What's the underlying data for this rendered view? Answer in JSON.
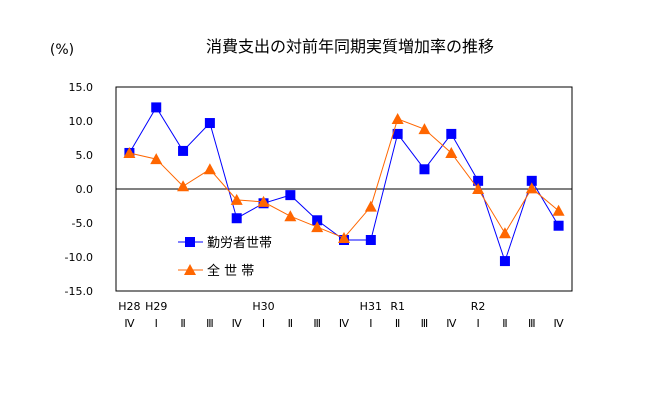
{
  "chart_data": {
    "type": "line",
    "title": "消費支出の対前年同期実質増加率の推移",
    "ylabel": "(%)",
    "ylim": [
      -15,
      15
    ],
    "yticks": [
      "15.0",
      "10.0",
      "5.0",
      "0.0",
      "-5.0",
      "-10.0",
      "-15.0"
    ],
    "ytick_values": [
      15,
      10,
      5,
      0,
      -5,
      -10,
      -15
    ],
    "grid": false,
    "legend_placement": "bottom-left",
    "year_labels": [
      "H28",
      "H29",
      "",
      "",
      "",
      "H30",
      "",
      "",
      "",
      "H31",
      "R1",
      "",
      "",
      "R2",
      "",
      "",
      ""
    ],
    "categories": [
      "Ⅳ",
      "Ⅰ",
      "Ⅱ",
      "Ⅲ",
      "Ⅳ",
      "Ⅰ",
      "Ⅱ",
      "Ⅲ",
      "Ⅳ",
      "Ⅰ",
      "Ⅱ",
      "Ⅲ",
      "Ⅳ",
      "Ⅰ",
      "Ⅱ",
      "Ⅲ",
      "Ⅳ"
    ],
    "series": [
      {
        "name": "勤労者世帯",
        "color": "#0000ff",
        "marker": "square",
        "values": [
          5.3,
          12.0,
          5.6,
          9.7,
          -4.3,
          -2.1,
          -0.9,
          -4.6,
          -7.5,
          -7.5,
          8.1,
          2.9,
          8.1,
          1.2,
          -10.6,
          1.2,
          -5.4
        ]
      },
      {
        "name": "全 世 帯",
        "color": "#ff6600",
        "marker": "triangle",
        "values": [
          5.3,
          4.4,
          0.4,
          2.9,
          -1.6,
          -1.9,
          -4.0,
          -5.6,
          -7.2,
          -2.6,
          10.3,
          8.8,
          5.3,
          0.0,
          -6.5,
          0.1,
          -3.2
        ]
      }
    ]
  }
}
